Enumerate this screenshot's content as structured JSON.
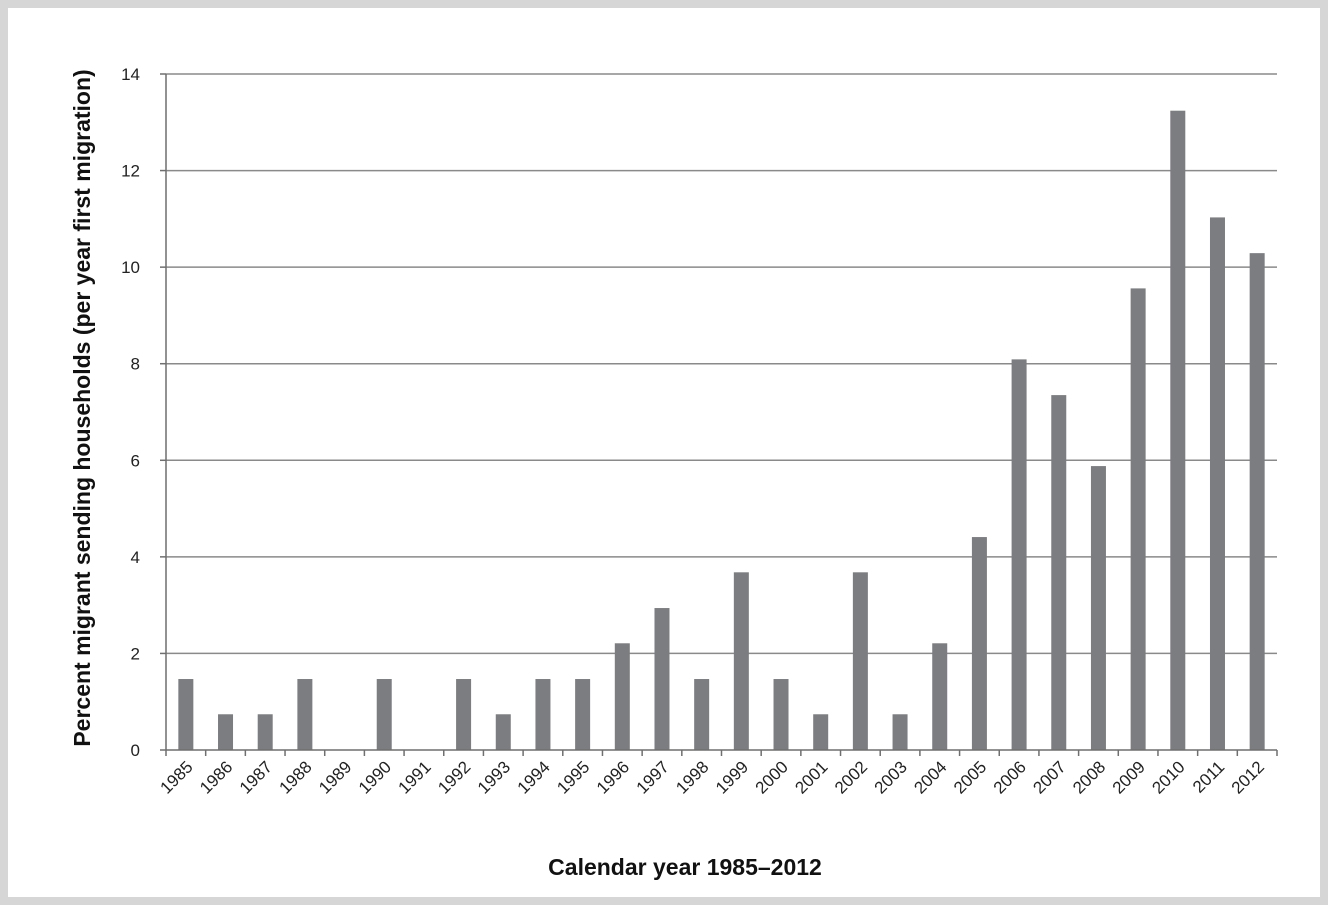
{
  "chart_data": {
    "type": "bar",
    "title": "",
    "xlabel": "Calendar year 1985–2012",
    "ylabel": "Percent migrant sending households (per year first migration)",
    "categories": [
      "1985",
      "1986",
      "1987",
      "1988",
      "1989",
      "1990",
      "1991",
      "1992",
      "1993",
      "1994",
      "1995",
      "1996",
      "1997",
      "1998",
      "1999",
      "2000",
      "2001",
      "2002",
      "2003",
      "2004",
      "2005",
      "2006",
      "2007",
      "2008",
      "2009",
      "2010",
      "2011",
      "2012"
    ],
    "values": [
      1.47,
      0.74,
      0.74,
      1.47,
      0,
      1.47,
      0,
      1.47,
      0.74,
      1.47,
      1.47,
      2.21,
      2.94,
      1.47,
      3.68,
      1.47,
      0.74,
      3.68,
      0.74,
      2.21,
      4.41,
      8.09,
      7.35,
      5.88,
      9.56,
      13.24,
      11.03,
      10.29
    ],
    "ylim": [
      0,
      14
    ],
    "yticks": [
      0,
      2,
      4,
      6,
      8,
      10,
      12,
      14
    ],
    "grid": true,
    "legend": "none",
    "bar_color": "#7c7d80",
    "grid_color": "#8a8a8a",
    "frame_color": "#d6d6d6"
  }
}
